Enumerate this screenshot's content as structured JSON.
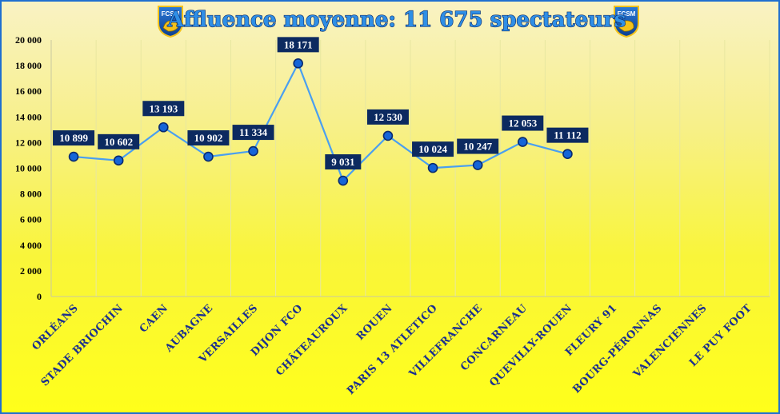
{
  "chart_data": {
    "type": "line",
    "title": "Affluence moyenne: 11 675 spectateurs",
    "categories": [
      "ORLÉANS",
      "STADE BRIOCHIN",
      "CAEN",
      "AUBAGNE",
      "VERSAILLES",
      "DIJON FCO",
      "CHÂTEAUROUX",
      "ROUEN",
      "PARIS 13 ATLETICO",
      "VILLEFRANCHE",
      "CONCARNEAU",
      "QUEVILLY-ROUEN",
      "FLEURY 91",
      "BOURG-PÉRONNAS",
      "VALENCIENNES",
      "LE PUY FOOT"
    ],
    "values": [
      10899,
      10602,
      13193,
      10902,
      11334,
      18171,
      9031,
      12530,
      10024,
      10247,
      12053,
      11112,
      null,
      null,
      null,
      null
    ],
    "value_labels": [
      "10 899",
      "10 602",
      "13 193",
      "10 902",
      "11 334",
      "18 171",
      "9 031",
      "12 530",
      "10 024",
      "10 247",
      "12 053",
      "11 112",
      "",
      "",
      "",
      ""
    ],
    "ylim": [
      0,
      20000
    ],
    "yticks": [
      0,
      2000,
      4000,
      6000,
      8000,
      10000,
      12000,
      14000,
      16000,
      18000,
      20000
    ],
    "ytick_labels": [
      "0",
      "2 000",
      "4 000",
      "6 000",
      "8 000",
      "10 000",
      "12 000",
      "14 000",
      "16 000",
      "18 000",
      "20 000"
    ],
    "xlabel": "",
    "ylabel": "",
    "grid": "vertical",
    "legend": "none",
    "colors": {
      "line": "#4a9ff0",
      "marker_fill": "#1565d8",
      "marker_edge": "#0a2a6e",
      "label_bg": "#0c2a60",
      "label_text": "#ffffff",
      "title_fill": "#2f8fe6",
      "axis_text": "#000000",
      "category_text": "#1a2f8f",
      "border": "#1f6fd0"
    }
  },
  "logos": {
    "text": "FCSM",
    "icon": "fcsm-lion-crest-icon"
  }
}
